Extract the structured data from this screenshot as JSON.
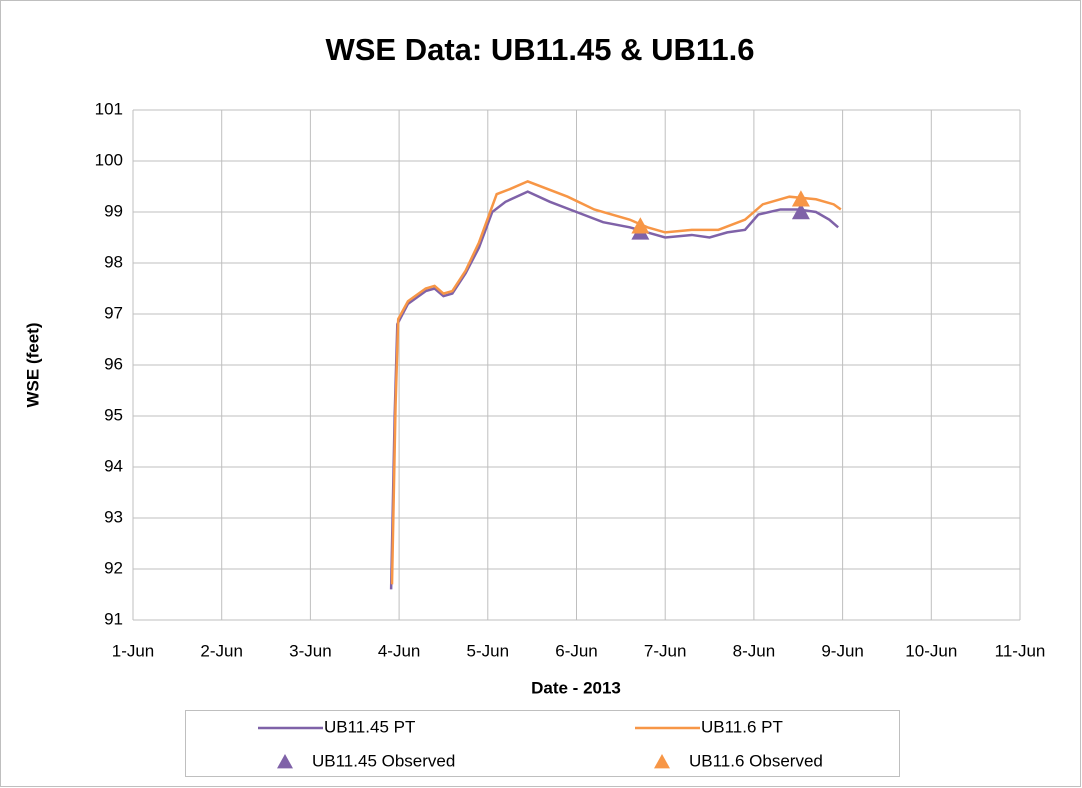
{
  "chart_data": {
    "type": "line",
    "title": "WSE Data: UB11.45 & UB11.6",
    "xlabel": "Date - 2013",
    "ylabel": "WSE (feet)",
    "xlim": [
      1,
      11
    ],
    "xticks": [
      {
        "value": 1,
        "label": "1-Jun"
      },
      {
        "value": 2,
        "label": "2-Jun"
      },
      {
        "value": 3,
        "label": "3-Jun"
      },
      {
        "value": 4,
        "label": "4-Jun"
      },
      {
        "value": 5,
        "label": "5-Jun"
      },
      {
        "value": 6,
        "label": "6-Jun"
      },
      {
        "value": 7,
        "label": "7-Jun"
      },
      {
        "value": 8,
        "label": "8-Jun"
      },
      {
        "value": 9,
        "label": "9-Jun"
      },
      {
        "value": 10,
        "label": "10-Jun"
      },
      {
        "value": 11,
        "label": "11-Jun"
      }
    ],
    "ylim": [
      91,
      101
    ],
    "yticks": [
      91,
      92,
      93,
      94,
      95,
      96,
      97,
      98,
      99,
      100,
      101
    ],
    "grid": true,
    "legend": "bottom",
    "series": [
      {
        "name": "UB11.45 PT",
        "color": "#7f62a8",
        "style": "line",
        "x": [
          3.91,
          3.95,
          3.98,
          4.1,
          4.3,
          4.4,
          4.5,
          4.6,
          4.75,
          4.9,
          5.05,
          5.2,
          5.45,
          5.7,
          6.0,
          6.3,
          6.6,
          6.8,
          7.0,
          7.3,
          7.5,
          7.7,
          7.9,
          8.05,
          8.3,
          8.5,
          8.7,
          8.85,
          8.95
        ],
        "values": [
          91.6,
          95.0,
          96.8,
          97.2,
          97.45,
          97.5,
          97.35,
          97.4,
          97.8,
          98.3,
          99.0,
          99.2,
          99.4,
          99.2,
          99.0,
          98.8,
          98.7,
          98.6,
          98.5,
          98.55,
          98.5,
          98.6,
          98.65,
          98.95,
          99.05,
          99.05,
          99.0,
          98.85,
          98.7
        ]
      },
      {
        "name": "UB11.6 PT",
        "color": "#f79646",
        "style": "line",
        "x": [
          3.92,
          3.96,
          3.99,
          4.1,
          4.3,
          4.4,
          4.5,
          4.6,
          4.75,
          4.9,
          5.1,
          5.25,
          5.45,
          5.9,
          6.2,
          6.6,
          6.8,
          7.0,
          7.3,
          7.6,
          7.9,
          8.1,
          8.4,
          8.7,
          8.9,
          8.98
        ],
        "values": [
          91.7,
          95.2,
          96.9,
          97.25,
          97.5,
          97.55,
          97.4,
          97.45,
          97.85,
          98.4,
          99.35,
          99.45,
          99.6,
          99.3,
          99.05,
          98.85,
          98.7,
          98.6,
          98.65,
          98.65,
          98.85,
          99.15,
          99.3,
          99.25,
          99.15,
          99.05
        ]
      },
      {
        "name": "UB11.45 Observed",
        "color": "#7f62a8",
        "style": "marker",
        "x": [
          6.72,
          8.53
        ],
        "values": [
          98.6,
          99.0
        ]
      },
      {
        "name": "UB11.6 Observed",
        "color": "#f79646",
        "style": "marker",
        "x": [
          6.72,
          8.53
        ],
        "values": [
          98.72,
          99.25
        ]
      }
    ]
  }
}
